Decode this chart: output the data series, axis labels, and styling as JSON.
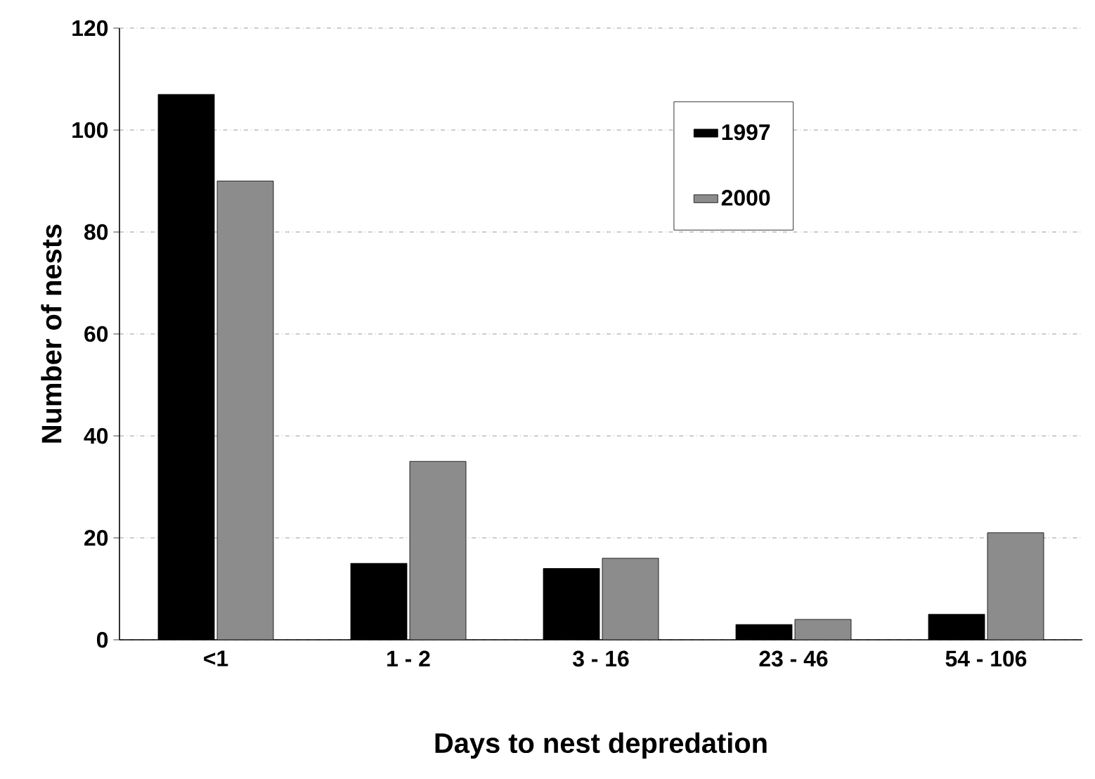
{
  "chart_data": {
    "type": "bar",
    "xlabel": "Days to nest depredation",
    "ylabel": "Number of nests",
    "categories": [
      "<1",
      "1 - 2",
      "3 - 16",
      "23 - 46",
      "54 - 106"
    ],
    "series": [
      {
        "name": "1997",
        "color": "#000000",
        "values": [
          107,
          15,
          14,
          3,
          5
        ]
      },
      {
        "name": "2000",
        "color": "#8c8c8c",
        "values": [
          90,
          35,
          16,
          4,
          21
        ]
      }
    ],
    "ylim": [
      0,
      120
    ],
    "yticks": [
      0,
      20,
      40,
      60,
      80,
      100,
      120
    ],
    "grid": "y",
    "legend": "top right"
  }
}
